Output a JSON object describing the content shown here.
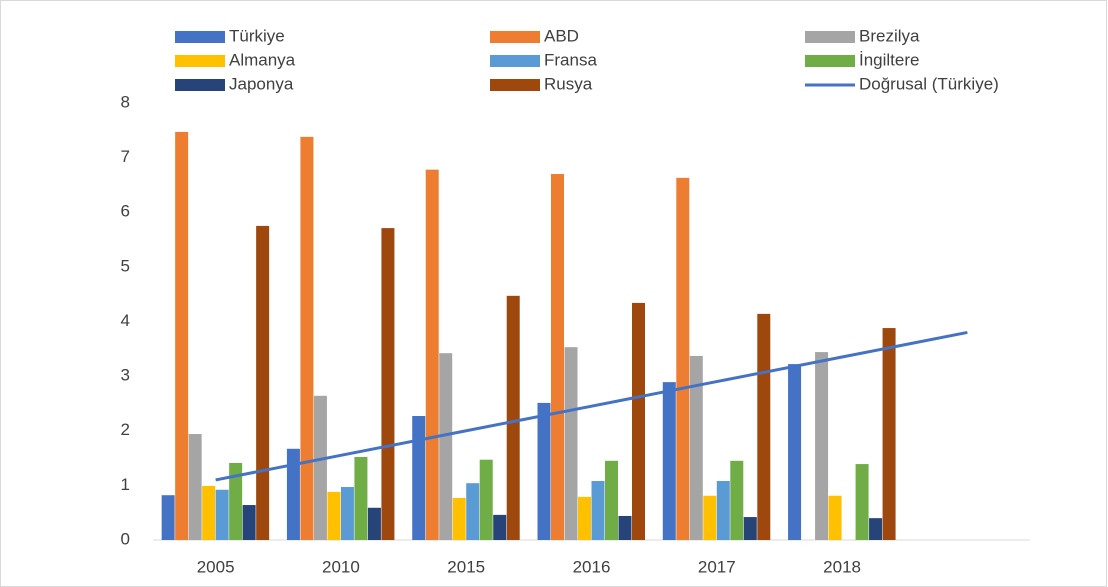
{
  "chart_data": {
    "type": "bar",
    "categories": [
      "2005",
      "2010",
      "2015",
      "2016",
      "2017",
      "2018",
      null
    ],
    "ylim": [
      0,
      8
    ],
    "yticks": [
      0,
      1,
      2,
      3,
      4,
      5,
      6,
      7,
      8
    ],
    "grid": false,
    "legend": "top",
    "series": [
      {
        "name": "Türkiye",
        "color": "#4472c4",
        "values": [
          0.82,
          1.67,
          2.27,
          2.51,
          2.89,
          3.22,
          null
        ]
      },
      {
        "name": "ABD",
        "color": "#ed7d31",
        "values": [
          7.47,
          7.38,
          6.78,
          6.7,
          6.63,
          null,
          null
        ]
      },
      {
        "name": "Brezilya",
        "color": "#a5a5a5",
        "values": [
          1.94,
          2.64,
          3.42,
          3.53,
          3.37,
          3.44,
          null
        ]
      },
      {
        "name": "Almanya",
        "color": "#ffc000",
        "values": [
          0.99,
          0.88,
          0.77,
          0.79,
          0.81,
          0.81,
          null
        ]
      },
      {
        "name": "Fransa",
        "color": "#5b9bd5",
        "values": [
          0.92,
          0.97,
          1.04,
          1.08,
          1.08,
          null,
          null
        ]
      },
      {
        "name": "İngiltere",
        "color": "#70ad47",
        "values": [
          1.41,
          1.52,
          1.47,
          1.45,
          1.45,
          1.39,
          null
        ]
      },
      {
        "name": "Japonya",
        "color": "#264478",
        "values": [
          0.64,
          0.59,
          0.46,
          0.44,
          0.42,
          0.4,
          null
        ]
      },
      {
        "name": "Rusya",
        "color": "#9e480e",
        "values": [
          5.75,
          5.71,
          4.47,
          4.34,
          4.14,
          3.88,
          null
        ]
      },
      {
        "name": "Doğrusal (Türkiye)",
        "color": "#4472c4",
        "type": "line",
        "values": [
          1.1,
          1.55,
          2.0,
          2.45,
          2.9,
          3.35,
          3.8
        ]
      }
    ]
  }
}
